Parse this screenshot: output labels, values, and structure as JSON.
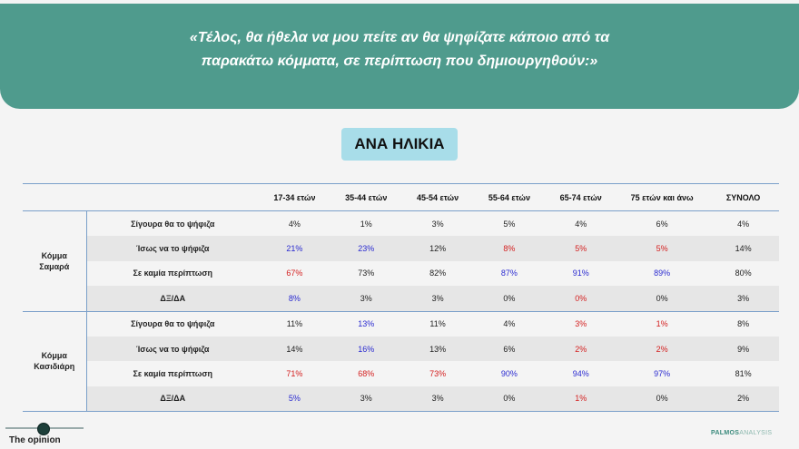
{
  "header": {
    "question_line1": "«Τέλος, θα ήθελα να μου πείτε αν θα ψηφίζατε κάποιο από τα",
    "question_line2": "παρακάτω κόμματα, σε περίπτωση που δημιουργηθούν:»"
  },
  "section_label": "ΑΝΑ ΗΛΙΚΙΑ",
  "table": {
    "columns": [
      "17-34 ετών",
      "35-44 ετών",
      "45-54 ετών",
      "55-64 ετών",
      "65-74 ετών",
      "75 ετών και άνω",
      "ΣΥΝΟΛΟ"
    ],
    "groups": [
      {
        "name_line1": "Κόμμα",
        "name_line2": "Σαμαρά",
        "rows": [
          {
            "label": "Σίγουρα θα το ψήφιζα",
            "values": [
              "4%",
              "1%",
              "3%",
              "5%",
              "4%",
              "6%",
              "4%"
            ],
            "colors": [
              "black",
              "black",
              "black",
              "black",
              "black",
              "black",
              "black"
            ]
          },
          {
            "label": "Ίσως να το ψήφιζα",
            "values": [
              "21%",
              "23%",
              "12%",
              "8%",
              "5%",
              "5%",
              "14%"
            ],
            "colors": [
              "blue",
              "blue",
              "black",
              "red",
              "red",
              "red",
              "black"
            ]
          },
          {
            "label": "Σε καμία περίπτωση",
            "values": [
              "67%",
              "73%",
              "82%",
              "87%",
              "91%",
              "89%",
              "80%"
            ],
            "colors": [
              "red",
              "black",
              "black",
              "blue",
              "blue",
              "blue",
              "black"
            ]
          },
          {
            "label": "ΔΞ/ΔΑ",
            "values": [
              "8%",
              "3%",
              "3%",
              "0%",
              "0%",
              "0%",
              "3%"
            ],
            "colors": [
              "blue",
              "black",
              "black",
              "black",
              "red",
              "black",
              "black"
            ]
          }
        ]
      },
      {
        "name_line1": "Κόμμα",
        "name_line2": "Κασιδιάρη",
        "rows": [
          {
            "label": "Σίγουρα θα το ψήφιζα",
            "values": [
              "11%",
              "13%",
              "11%",
              "4%",
              "3%",
              "1%",
              "8%"
            ],
            "colors": [
              "black",
              "blue",
              "black",
              "black",
              "red",
              "red",
              "black"
            ]
          },
          {
            "label": "Ίσως να το ψήφιζα",
            "values": [
              "14%",
              "16%",
              "13%",
              "6%",
              "2%",
              "2%",
              "9%"
            ],
            "colors": [
              "black",
              "blue",
              "black",
              "black",
              "red",
              "red",
              "black"
            ]
          },
          {
            "label": "Σε καμία περίπτωση",
            "values": [
              "71%",
              "68%",
              "73%",
              "90%",
              "94%",
              "97%",
              "81%"
            ],
            "colors": [
              "red",
              "red",
              "red",
              "blue",
              "blue",
              "blue",
              "black"
            ]
          },
          {
            "label": "ΔΞ/ΔΑ",
            "values": [
              "5%",
              "3%",
              "3%",
              "0%",
              "1%",
              "0%",
              "2%"
            ],
            "colors": [
              "blue",
              "black",
              "black",
              "black",
              "red",
              "black",
              "black"
            ]
          }
        ]
      }
    ]
  },
  "footer": {
    "left_brand": "The opinion",
    "right_brand_main": "PALMOS",
    "right_brand_light": "ANALYSIS"
  }
}
